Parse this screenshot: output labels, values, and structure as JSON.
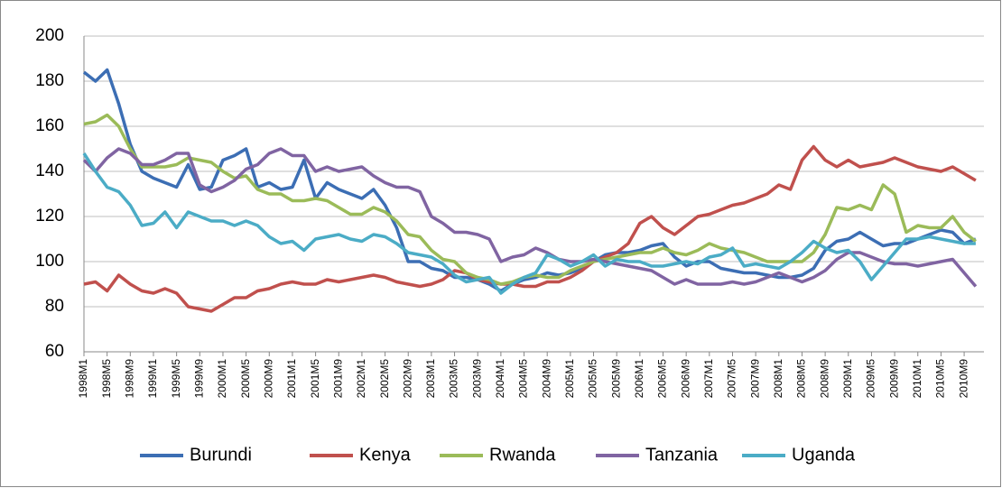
{
  "chart_data": {
    "type": "line",
    "categories": [
      "1998M1",
      null,
      "1998M5",
      null,
      "1998M9",
      null,
      "1999M1",
      null,
      "1999M5",
      null,
      "1999M9",
      null,
      "2000M1",
      null,
      "2000M5",
      null,
      "2000M9",
      null,
      "2001M1",
      null,
      "2001M5",
      null,
      "2001M9",
      null,
      "2002M1",
      null,
      "2002M5",
      null,
      "2002M9",
      null,
      "2003M1",
      null,
      "2003M5",
      null,
      "2003M9",
      null,
      "2004M1",
      null,
      "2004M5",
      null,
      "2004M9",
      null,
      "2005M1",
      null,
      "2005M5",
      null,
      "2005M9",
      null,
      "2006M1",
      null,
      "2006M5",
      null,
      "2006M9",
      null,
      "2007M1",
      null,
      "2007M5",
      null,
      "2007M9",
      null,
      "2008M1",
      null,
      "2008M5",
      null,
      "2008M9",
      null,
      "2009M1",
      null,
      "2009M5",
      null,
      "2009M9",
      null,
      "2010M1",
      null,
      "2010M5",
      null,
      "2010M9",
      null
    ],
    "series": [
      {
        "name": "Burundi",
        "color": "#3c6eb4",
        "values": [
          184,
          180,
          185,
          170,
          152,
          140,
          137,
          135,
          133,
          143,
          132,
          133,
          145,
          147,
          150,
          133,
          135,
          132,
          133,
          145,
          128,
          135,
          132,
          130,
          128,
          132,
          125,
          115,
          100,
          100,
          97,
          96,
          93,
          93,
          92,
          90,
          87,
          90,
          92,
          93,
          95,
          94,
          95,
          97,
          100,
          103,
          104,
          104,
          105,
          107,
          108,
          102,
          98,
          100,
          100,
          97,
          96,
          95,
          95,
          94,
          93,
          93,
          94,
          97,
          105,
          109,
          110,
          113,
          110,
          107,
          108,
          108,
          110,
          112,
          114,
          113,
          108,
          110
        ]
      },
      {
        "name": "Kenya",
        "color": "#c0504d",
        "values": [
          90,
          91,
          87,
          94,
          90,
          87,
          86,
          88,
          86,
          80,
          79,
          78,
          81,
          84,
          84,
          87,
          88,
          90,
          91,
          90,
          90,
          92,
          91,
          92,
          93,
          94,
          93,
          91,
          90,
          89,
          90,
          92,
          96,
          95,
          92,
          91,
          90,
          90,
          89,
          89,
          91,
          91,
          93,
          96,
          100,
          102,
          104,
          108,
          117,
          120,
          115,
          112,
          116,
          120,
          121,
          123,
          125,
          126,
          128,
          130,
          134,
          132,
          145,
          151,
          145,
          142,
          145,
          142,
          143,
          144,
          146,
          144,
          142,
          141,
          140,
          142,
          139,
          136
        ]
      },
      {
        "name": "Rwanda",
        "color": "#9bbb59",
        "values": [
          161,
          162,
          165,
          160,
          150,
          142,
          142,
          142,
          143,
          146,
          145,
          144,
          140,
          137,
          138,
          132,
          130,
          130,
          127,
          127,
          128,
          127,
          124,
          121,
          121,
          124,
          122,
          118,
          112,
          111,
          105,
          101,
          100,
          95,
          93,
          92,
          90,
          91,
          93,
          94,
          93,
          93,
          96,
          98,
          100,
          101,
          102,
          103,
          104,
          104,
          106,
          104,
          103,
          105,
          108,
          106,
          105,
          104,
          102,
          100,
          100,
          100,
          100,
          104,
          112,
          124,
          123,
          125,
          123,
          134,
          130,
          113,
          116,
          115,
          115,
          120,
          113,
          109
        ]
      },
      {
        "name": "Tanzania",
        "color": "#8064a2",
        "values": [
          145,
          140,
          146,
          150,
          148,
          143,
          143,
          145,
          148,
          148,
          134,
          131,
          133,
          136,
          141,
          143,
          148,
          150,
          147,
          147,
          140,
          142,
          140,
          141,
          142,
          138,
          135,
          133,
          133,
          131,
          120,
          117,
          113,
          113,
          112,
          110,
          100,
          102,
          103,
          106,
          104,
          101,
          100,
          100,
          101,
          100,
          99,
          98,
          97,
          96,
          93,
          90,
          92,
          90,
          90,
          90,
          91,
          90,
          91,
          93,
          95,
          93,
          91,
          93,
          96,
          101,
          104,
          104,
          102,
          100,
          99,
          99,
          98,
          99,
          100,
          101,
          95,
          89
        ]
      },
      {
        "name": "Uganda",
        "color": "#4bacc6",
        "values": [
          148,
          140,
          133,
          131,
          125,
          116,
          117,
          122,
          115,
          122,
          120,
          118,
          118,
          116,
          118,
          116,
          111,
          108,
          109,
          105,
          110,
          111,
          112,
          110,
          109,
          112,
          111,
          108,
          104,
          103,
          102,
          99,
          94,
          91,
          92,
          93,
          86,
          90,
          93,
          95,
          103,
          101,
          98,
          100,
          103,
          98,
          101,
          100,
          100,
          98,
          98,
          99,
          100,
          99,
          102,
          103,
          106,
          98,
          99,
          98,
          97,
          100,
          104,
          109,
          106,
          104,
          105,
          100,
          92,
          98,
          104,
          110,
          110,
          111,
          110,
          109,
          108,
          108
        ]
      }
    ],
    "ylim": [
      60,
      200
    ],
    "yticks": [
      60,
      80,
      100,
      120,
      140,
      160,
      180,
      200
    ],
    "grid": true,
    "legend": "bottom"
  }
}
